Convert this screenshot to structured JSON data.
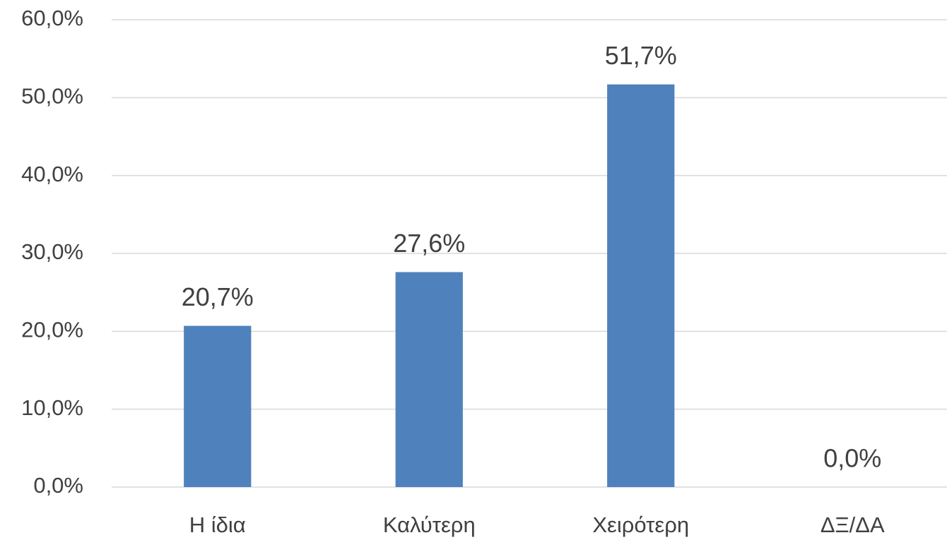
{
  "chart_data": {
    "type": "bar",
    "categories": [
      "Η ίδια",
      "Καλύτερη",
      "Χειρότερη",
      "ΔΞ/ΔΑ"
    ],
    "values": [
      20.7,
      27.6,
      51.7,
      0
    ],
    "value_labels": [
      "20,7%",
      "27,6%",
      "51,7%",
      "0,0%"
    ],
    "color": "#4f81bd",
    "ylim": [
      0,
      60
    ],
    "yticks": [
      {
        "value": 0,
        "label": "0,0%"
      },
      {
        "value": 10,
        "label": "10,0%"
      },
      {
        "value": 20,
        "label": "20,0%"
      },
      {
        "value": 30,
        "label": "30,0%"
      },
      {
        "value": 40,
        "label": "40,0%"
      },
      {
        "value": 50,
        "label": "50,0%"
      },
      {
        "value": 60,
        "label": "60,0%"
      }
    ],
    "grid": true
  }
}
